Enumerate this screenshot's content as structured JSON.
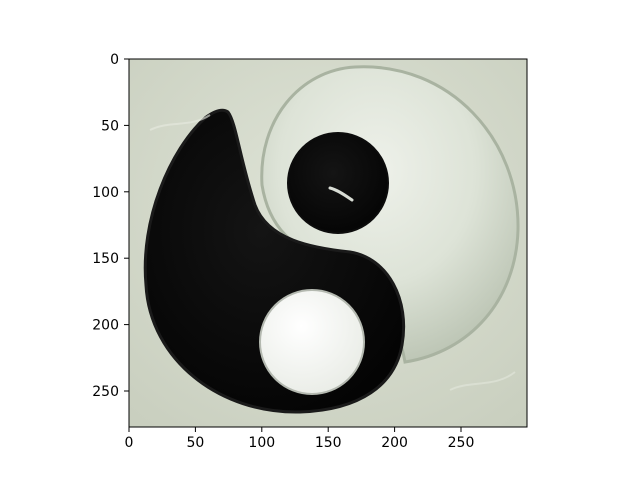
{
  "figure": {
    "axes": {
      "x_ticks": [
        "0",
        "50",
        "100",
        "150",
        "200",
        "250"
      ],
      "y_ticks": [
        "0",
        "50",
        "100",
        "150",
        "200",
        "250"
      ]
    }
  }
}
